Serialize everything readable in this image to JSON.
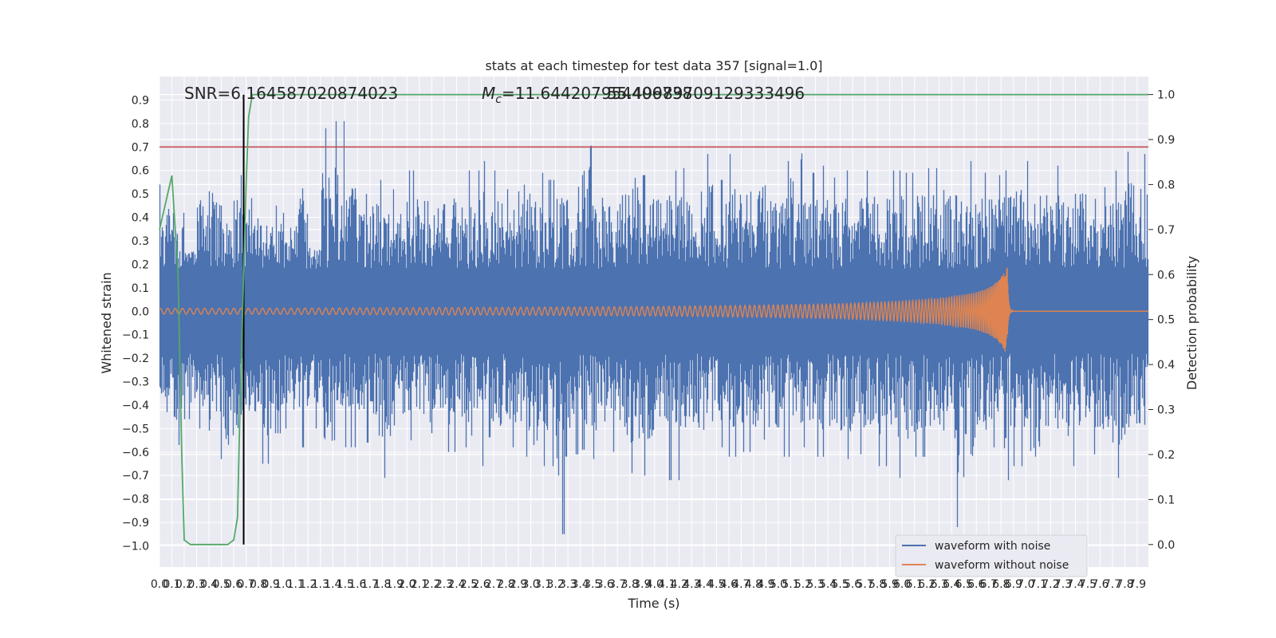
{
  "chart_data": {
    "type": "line",
    "title": "stats at each timestep for test data 357 [signal=1.0]",
    "xlabel": "Time (s)",
    "ylabel": "Whitened strain",
    "y2label": "Detection probability",
    "xlim": [
      0.0,
      7.99
    ],
    "ylim": [
      -1.09,
      1.0
    ],
    "y2lim": [
      -0.05,
      1.04
    ],
    "x_ticks": [
      "0.0",
      "0.1",
      "0.2",
      "0.3",
      "0.4",
      "0.5",
      "0.6",
      "0.7",
      "0.8",
      "0.9",
      "1.0",
      "1.1",
      "1.2",
      "1.3",
      "1.4",
      "1.5",
      "1.6",
      "1.7",
      "1.8",
      "1.9",
      "2.0",
      "2.1",
      "2.2",
      "2.3",
      "2.4",
      "2.5",
      "2.6",
      "2.7",
      "2.8",
      "2.9",
      "3.0",
      "3.1",
      "3.2",
      "3.3",
      "3.4",
      "3.5",
      "3.6",
      "3.7",
      "3.8",
      "3.9",
      "4.0",
      "4.1",
      "4.2",
      "4.3",
      "4.4",
      "4.5",
      "4.6",
      "4.7",
      "4.8",
      "4.9",
      "5.0",
      "5.1",
      "5.2",
      "5.3",
      "5.4",
      "5.5",
      "5.6",
      "5.7",
      "5.8",
      "5.9",
      "6.0",
      "6.1",
      "6.2",
      "6.3",
      "6.4",
      "6.5",
      "6.6",
      "6.7",
      "6.8",
      "6.9",
      "7.0",
      "7.1",
      "7.2",
      "7.3",
      "7.4",
      "7.5",
      "7.6",
      "7.7",
      "7.8",
      "7.9"
    ],
    "y_ticks": [
      "0.9",
      "0.8",
      "0.7",
      "0.6",
      "0.5",
      "0.4",
      "0.3",
      "0.2",
      "0.1",
      "0.0",
      "−0.1",
      "−0.2",
      "−0.3",
      "−0.4",
      "−0.5",
      "−0.6",
      "−0.7",
      "−0.8",
      "−0.9",
      "−1.0"
    ],
    "y2_ticks": [
      "1.0",
      "0.9",
      "0.8",
      "0.7",
      "0.6",
      "0.5",
      "0.4",
      "0.3",
      "0.2",
      "0.1",
      "0.0"
    ],
    "annotations": {
      "snr": "SNR=6.164587020874023",
      "mc_symbol": "M",
      "mc_sub": "c",
      "mc_value": "=11.644207954406738",
      "overlap": "55.49989709129333496"
    },
    "threshold_strain": 0.7,
    "detection_time": 0.68,
    "merger_time": 6.85,
    "series": [
      {
        "name": "waveform with noise",
        "color": "#4c72b0",
        "envelope_max": [
          0.54,
          0.42,
          0.28,
          0.62,
          0.63,
          0.45,
          0.58,
          0.6,
          0.43,
          0.45,
          0.42,
          0.69,
          0.3,
          0.78,
          0.81,
          0.71,
          0.5,
          0.56,
          0.52,
          0.51,
          0.6,
          0.47,
          0.55,
          0.58,
          0.53,
          0.6,
          0.64,
          0.6,
          0.52,
          0.68,
          0.59,
          0.56,
          0.61,
          0.53,
          0.89,
          0.61,
          0.54,
          0.63,
          0.77,
          0.58,
          0.6,
          0.6,
          0.61,
          0.51,
          0.67,
          0.56,
          0.67,
          0.7,
          0.69,
          0.58,
          0.64,
          0.88,
          0.59,
          0.62,
          0.57,
          0.6,
          0.61,
          0.6,
          0.58,
          0.6,
          0.59,
          0.6,
          0.61,
          0.63,
          0.6,
          0.64,
          0.59,
          0.58,
          0.6,
          0.63,
          0.64,
          0.6,
          0.62,
          0.62,
          0.61,
          0.63,
          0.65,
          0.6,
          0.68,
          0.67
        ],
        "envelope_min": [
          -0.43,
          -0.57,
          -0.46,
          -0.5,
          -0.63,
          -0.7,
          -0.62,
          -0.58,
          -0.65,
          -0.52,
          -0.5,
          -0.58,
          -0.5,
          -0.69,
          -0.55,
          -0.58,
          -0.56,
          -0.53,
          -0.71,
          -0.57,
          -0.55,
          -0.58,
          -0.52,
          -0.6,
          -0.58,
          -0.53,
          -0.66,
          -0.6,
          -0.58,
          -0.62,
          -0.77,
          -0.66,
          -0.95,
          -0.61,
          -0.59,
          -0.63,
          -0.6,
          -0.66,
          -0.69,
          -0.7,
          -0.62,
          -0.72,
          -0.6,
          -0.65,
          -0.6,
          -0.58,
          -0.62,
          -0.6,
          -0.7,
          -0.6,
          -0.62,
          -0.6,
          -0.58,
          -0.62,
          -0.6,
          -0.63,
          -0.61,
          -0.6,
          -0.66,
          -0.71,
          -0.68,
          -0.62,
          -0.6,
          -0.66,
          -0.92,
          -0.8,
          -0.62,
          -0.58,
          -0.72,
          -0.66,
          -0.77,
          -0.8,
          -0.63,
          -0.66,
          -0.6,
          -0.61,
          -0.63,
          -0.71,
          -0.6,
          -0.63
        ]
      },
      {
        "name": "waveform without noise",
        "color": "#dd8452",
        "inspiral_amplitude": [
          [
            0.0,
            0.012
          ],
          [
            1.0,
            0.013
          ],
          [
            2.0,
            0.015
          ],
          [
            3.0,
            0.017
          ],
          [
            4.0,
            0.02
          ],
          [
            5.0,
            0.027
          ],
          [
            5.5,
            0.032
          ],
          [
            6.0,
            0.043
          ],
          [
            6.3,
            0.055
          ],
          [
            6.5,
            0.07
          ],
          [
            6.6,
            0.08
          ],
          [
            6.7,
            0.1
          ],
          [
            6.78,
            0.13
          ],
          [
            6.83,
            0.17
          ],
          [
            6.85,
            0.19
          ]
        ]
      },
      {
        "name": "detection probability",
        "color": "#55a868",
        "axis": "right",
        "x": [
          0.0,
          0.05,
          0.1,
          0.15,
          0.18,
          0.2,
          0.25,
          0.3,
          0.4,
          0.5,
          0.55,
          0.6,
          0.63,
          0.65,
          0.68,
          0.7,
          0.72,
          0.75,
          0.8,
          1.0,
          2.0,
          3.0,
          4.0,
          5.0,
          6.0,
          7.0,
          7.99
        ],
        "y": [
          0.7,
          0.76,
          0.82,
          0.6,
          0.2,
          0.01,
          0.0,
          0.0,
          0.0,
          0.0,
          0.0,
          0.01,
          0.06,
          0.3,
          0.6,
          0.8,
          0.95,
          1.0,
          1.0,
          1.0,
          1.0,
          1.0,
          1.0,
          1.0,
          1.0,
          1.0,
          1.0
        ]
      }
    ],
    "legend": {
      "placement": "lower right",
      "entries": [
        "waveform with noise",
        "waveform without noise"
      ]
    },
    "grid": true
  },
  "colors": {
    "plot_bg": "#eaeaf2",
    "grid": "#ffffff",
    "threshold": "#c44e52",
    "marker": "#000000"
  }
}
